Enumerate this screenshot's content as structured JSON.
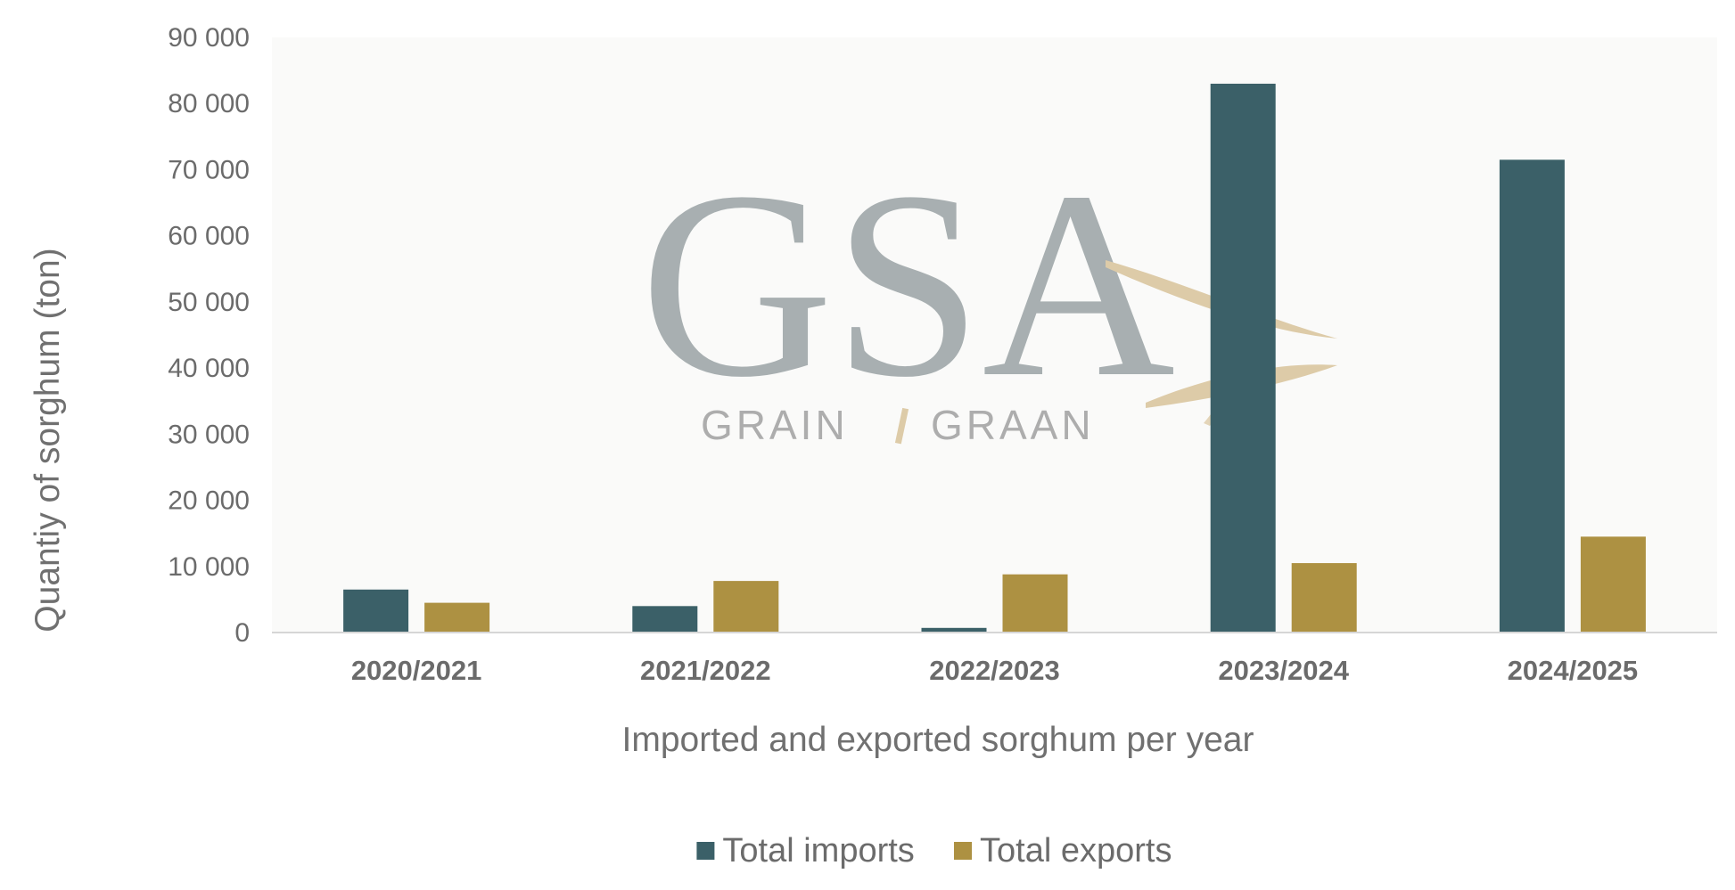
{
  "chart_data": {
    "type": "bar",
    "categories": [
      "2020/2021",
      "2021/2022",
      "2022/2023",
      "2023/2024",
      "2024/2025"
    ],
    "series": [
      {
        "name": "Total imports",
        "values": [
          6500,
          4000,
          700,
          83000,
          71500
        ],
        "color": "#3b6068"
      },
      {
        "name": "Total exports",
        "values": [
          4500,
          7800,
          8800,
          10500,
          14500
        ],
        "color": "#ad9142"
      }
    ],
    "xlabel": "Imported and exported sorghum per year",
    "ylabel": "Quantiy of sorghum (ton)",
    "ylim": [
      0,
      90000
    ],
    "yticks": [
      0,
      10000,
      20000,
      30000,
      40000,
      50000,
      60000,
      70000,
      80000,
      90000
    ],
    "ytick_labels": [
      "0",
      "10 000",
      "20 000",
      "30 000",
      "40 000",
      "50 000",
      "60 000",
      "70 000",
      "80 000",
      "90 000"
    ],
    "grid": false,
    "legend_position": "bottom"
  },
  "watermark": {
    "logo_text": "GSA",
    "tagline_left": "GRAIN",
    "tagline_right": "GRAAN"
  },
  "colors": {
    "plot_background": "#fafaf9",
    "axis_line": "#d6d6d6",
    "logo_gold": "#dcc9a4"
  }
}
